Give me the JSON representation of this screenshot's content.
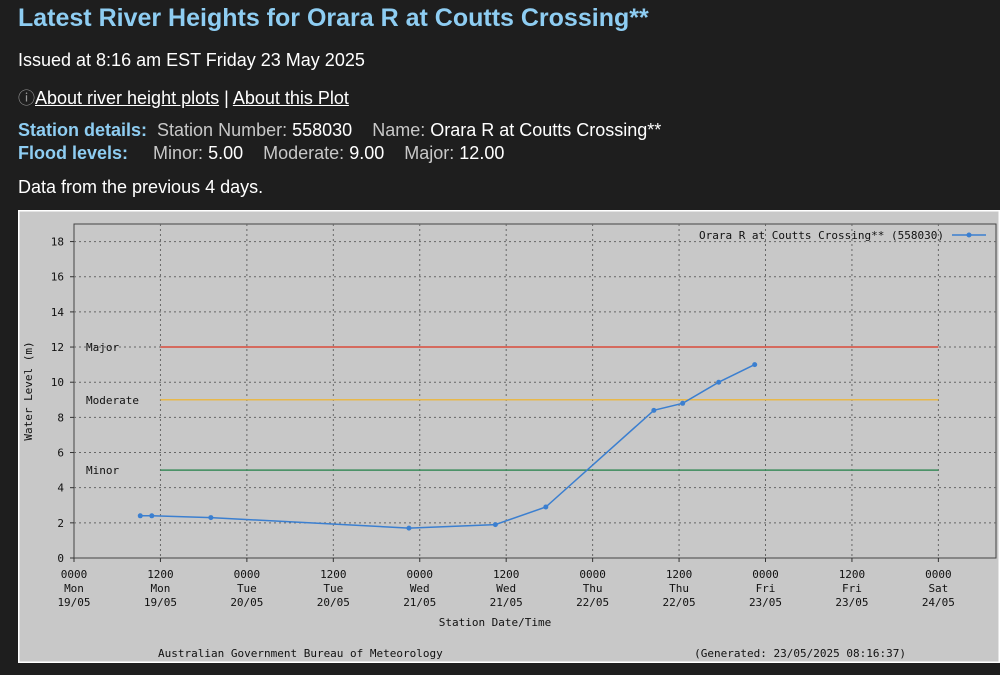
{
  "header": {
    "title": "Latest River Heights for Orara R at Coutts Crossing**",
    "issued": "Issued at 8:16 am EST Friday 23 May 2025",
    "link_about_river": "About river height plots",
    "link_separator": "|",
    "link_about_plot": "About this Plot"
  },
  "station": {
    "details_label": "Station details:",
    "number_label": "Station Number:",
    "number": "558030",
    "name_label": "Name:",
    "name": "Orara R at Coutts Crossing**"
  },
  "flood": {
    "label": "Flood levels:",
    "minor_label": "Minor:",
    "minor": "5.00",
    "moderate_label": "Moderate:",
    "moderate": "9.00",
    "major_label": "Major:",
    "major": "12.00"
  },
  "data_note": "Data from the previous 4 days.",
  "chart_data": {
    "type": "line",
    "ylabel": "Water Level (m)",
    "xlabel": "Station Date/Time",
    "ylim": [
      0,
      19
    ],
    "yticks": [
      0,
      2,
      4,
      6,
      8,
      10,
      12,
      14,
      16,
      18
    ],
    "xlim_hours": [
      0,
      128
    ],
    "xticks": [
      {
        "h": 0,
        "time": "0000",
        "day": "Mon",
        "date": "19/05"
      },
      {
        "h": 12,
        "time": "1200",
        "day": "Mon",
        "date": "19/05"
      },
      {
        "h": 24,
        "time": "0000",
        "day": "Tue",
        "date": "20/05"
      },
      {
        "h": 36,
        "time": "1200",
        "day": "Tue",
        "date": "20/05"
      },
      {
        "h": 48,
        "time": "0000",
        "day": "Wed",
        "date": "21/05"
      },
      {
        "h": 60,
        "time": "1200",
        "day": "Wed",
        "date": "21/05"
      },
      {
        "h": 72,
        "time": "0000",
        "day": "Thu",
        "date": "22/05"
      },
      {
        "h": 84,
        "time": "1200",
        "day": "Thu",
        "date": "22/05"
      },
      {
        "h": 96,
        "time": "0000",
        "day": "Fri",
        "date": "23/05"
      },
      {
        "h": 108,
        "time": "1200",
        "day": "Fri",
        "date": "23/05"
      },
      {
        "h": 120,
        "time": "0000",
        "day": "Sat",
        "date": "24/05"
      }
    ],
    "series": [
      {
        "name": "Orara R at Coutts Crossing** (558030)",
        "color": "#3b7fd0",
        "points": [
          [
            9.2,
            2.4
          ],
          [
            10.8,
            2.4
          ],
          [
            19.0,
            2.3
          ],
          [
            46.5,
            1.7
          ],
          [
            58.5,
            1.9
          ],
          [
            65.5,
            2.9
          ],
          [
            80.5,
            8.4
          ],
          [
            84.5,
            8.8
          ],
          [
            89.5,
            10.0
          ],
          [
            94.5,
            11.0
          ]
        ]
      }
    ],
    "thresholds": [
      {
        "label": "Major",
        "value": 12,
        "color": "#d94a3a"
      },
      {
        "label": "Moderate",
        "value": 9,
        "color": "#e8b84a"
      },
      {
        "label": "Minor",
        "value": 5,
        "color": "#3a8a5a"
      }
    ],
    "footer_left": "Australian Government Bureau of Meteorology",
    "footer_right": "(Generated: 23/05/2025 08:16:37)"
  }
}
